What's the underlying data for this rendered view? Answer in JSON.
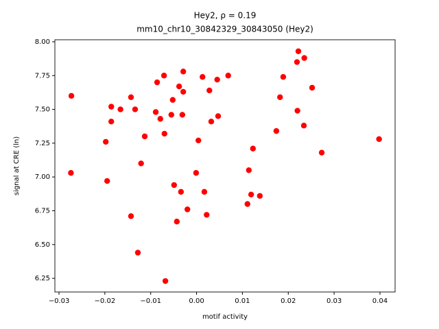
{
  "chart_data": {
    "type": "scatter",
    "title": "Hey2, ρ = 0.19",
    "subtitle": "mm10_chr10_30842329_30843050 (Hey2)",
    "x_label": "motif activity",
    "y_label": "signal at CRE (ln)",
    "color": "#ff0000",
    "xlim": [
      -0.0309,
      0.0433
    ],
    "ylim": [
      6.149,
      8.015
    ],
    "xticks": [
      {
        "value": -0.03,
        "label": "−0.03"
      },
      {
        "value": -0.02,
        "label": "−0.02"
      },
      {
        "value": -0.01,
        "label": "−0.01"
      },
      {
        "value": 0,
        "label": "0.00"
      },
      {
        "value": 0.01,
        "label": "0.01"
      },
      {
        "value": 0.02,
        "label": "0.02"
      },
      {
        "value": 0.03,
        "label": "0.03"
      },
      {
        "value": 0.04,
        "label": "0.04"
      }
    ],
    "yticks": [
      {
        "value": 6.25,
        "label": "6.25"
      },
      {
        "value": 6.5,
        "label": "6.50"
      },
      {
        "value": 6.75,
        "label": "6.75"
      },
      {
        "value": 7,
        "label": "7.00"
      },
      {
        "value": 7.25,
        "label": "7.25"
      },
      {
        "value": 7.5,
        "label": "7.50"
      },
      {
        "value": 7.75,
        "label": "7.75"
      },
      {
        "value": 8,
        "label": "8.00"
      }
    ],
    "x": [
      -0.0273,
      -0.0274,
      -0.0186,
      -0.0186,
      -0.0166,
      -0.0198,
      -0.0195,
      -0.0143,
      -0.0134,
      -0.0113,
      -0.0121,
      -0.0143,
      -0.0128,
      -0.0086,
      -0.0071,
      -0.0089,
      -0.0079,
      -0.007,
      -0.0068,
      -0.0029,
      -0.0038,
      -0.0029,
      -0.0052,
      -0.0055,
      -0.0031,
      -0.0049,
      -0.0034,
      -0.002,
      -0.0043,
      0.0004,
      -0.0001,
      0.0017,
      0.0022,
      0.0013,
      0.0028,
      0.0045,
      0.0069,
      0.0032,
      0.0047,
      0.0123,
      0.0114,
      0.0119,
      0.0111,
      0.0138,
      0.0174,
      0.0182,
      0.0189,
      0.0222,
      0.0235,
      0.0219,
      0.0252,
      0.022,
      0.0234,
      0.0273,
      0.0398
    ],
    "values": [
      7.6,
      7.03,
      7.52,
      7.41,
      7.5,
      7.26,
      6.97,
      7.59,
      7.5,
      7.3,
      7.1,
      6.71,
      6.44,
      7.7,
      7.75,
      7.48,
      7.43,
      7.32,
      6.23,
      7.78,
      7.67,
      7.63,
      7.57,
      7.46,
      7.46,
      6.94,
      6.89,
      6.76,
      6.67,
      7.27,
      7.03,
      6.89,
      6.72,
      7.74,
      7.64,
      7.72,
      7.75,
      7.41,
      7.45,
      7.21,
      7.05,
      6.87,
      6.8,
      6.86,
      7.34,
      7.59,
      7.74,
      7.93,
      7.88,
      7.85,
      7.66,
      7.49,
      7.38,
      7.18,
      7.28
    ]
  }
}
